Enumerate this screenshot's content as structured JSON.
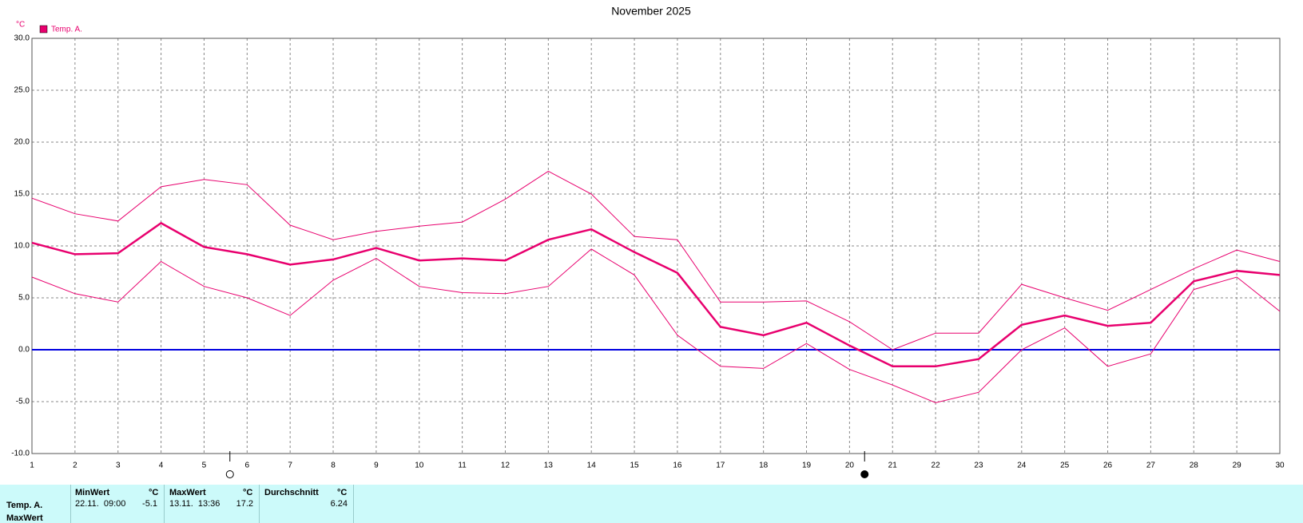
{
  "chart_data": {
    "type": "line",
    "title": "November 2025",
    "y_unit": "°C",
    "x": [
      1,
      2,
      3,
      4,
      5,
      6,
      7,
      8,
      9,
      10,
      11,
      12,
      13,
      14,
      15,
      16,
      17,
      18,
      19,
      20,
      21,
      22,
      23,
      24,
      25,
      26,
      27,
      28,
      29,
      30
    ],
    "series": [
      {
        "name": "Temp. A.",
        "color": "#e8006e",
        "values": [
          10.3,
          9.2,
          9.3,
          12.2,
          9.9,
          9.2,
          8.2,
          8.7,
          9.8,
          8.6,
          8.8,
          8.6,
          10.6,
          11.6,
          9.4,
          7.4,
          2.2,
          1.4,
          2.6,
          0.4,
          -1.6,
          -1.6,
          -0.9,
          2.4,
          3.3,
          2.3,
          2.6,
          6.6,
          7.6,
          7.2
        ],
        "high": [
          14.6,
          13.1,
          12.4,
          15.7,
          16.4,
          15.9,
          12.0,
          10.6,
          11.4,
          11.9,
          12.3,
          14.5,
          17.2,
          15.0,
          10.9,
          10.6,
          4.6,
          4.6,
          4.7,
          2.7,
          0.0,
          1.6,
          1.6,
          6.3,
          5.0,
          3.8,
          5.8,
          7.8,
          9.6,
          8.5
        ],
        "low": [
          7.0,
          5.4,
          4.6,
          8.5,
          6.1,
          5.0,
          3.3,
          6.7,
          8.8,
          6.1,
          5.5,
          5.4,
          6.1,
          9.7,
          7.2,
          1.4,
          -1.6,
          -1.8,
          0.6,
          -1.9,
          -3.4,
          -5.1,
          -4.1,
          0.0,
          2.1,
          -1.6,
          -0.4,
          5.8,
          7.0,
          3.7
        ]
      }
    ],
    "xlim": [
      1,
      30
    ],
    "ylim": [
      -10,
      30
    ],
    "yticks": [
      {
        "value": -10,
        "label": "-10.0"
      },
      {
        "value": -5,
        "label": "-5.0"
      },
      {
        "value": 0,
        "label": "0.0"
      },
      {
        "value": 5,
        "label": "5.0"
      },
      {
        "value": 10,
        "label": "10.0"
      },
      {
        "value": 15,
        "label": "15.0"
      },
      {
        "value": 20,
        "label": "20.0"
      },
      {
        "value": 25,
        "label": "25.0"
      },
      {
        "value": 30,
        "label": "30.0"
      }
    ],
    "grid": true,
    "zero_line_color": "#0000e0",
    "markers": [
      {
        "x": 5.6,
        "filled": false
      },
      {
        "x": 20.35,
        "filled": true
      }
    ]
  },
  "table": {
    "headers": [
      "MinWert",
      "°C",
      "MaxWert",
      "°C",
      "Durchschnitt",
      "°C"
    ],
    "rows": [
      [
        "Temp. A.",
        "22.11.  09:00",
        -5.1,
        "13.11.  13:36",
        17.2,
        6.24
      ],
      [
        "MaxWert"
      ]
    ]
  }
}
